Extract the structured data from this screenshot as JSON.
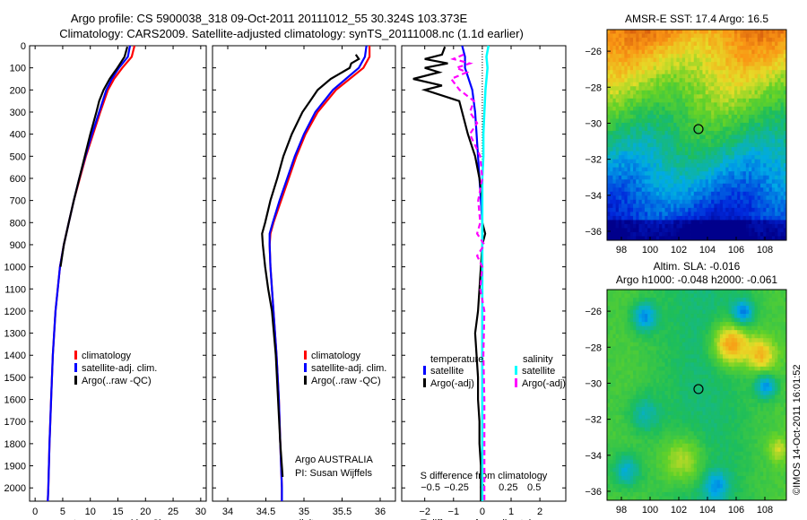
{
  "header": {
    "line1": "Argo profile: CS 5900038_318 09-Oct-2011 20111012_55 30.324S 103.373E",
    "line2": "Climatology: CARS2009. Satellite-adjusted climatology: synTS_20111008.nc (1.1d earlier)"
  },
  "colors": {
    "climatology": "#ff0000",
    "satellite": "#0000ff",
    "argo": "#000000",
    "sal_satellite": "#00ffff",
    "sal_argo": "#ff00ff"
  },
  "chart_data": [
    {
      "type": "line",
      "id": "temperature",
      "xlabel": "temperature (deg C)",
      "xlim": [
        -1,
        31
      ],
      "xticks": [
        0,
        5,
        10,
        15,
        20,
        25,
        30
      ],
      "ylim": [
        2060,
        0
      ],
      "yticks": [
        0,
        100,
        200,
        300,
        400,
        500,
        600,
        700,
        800,
        900,
        1000,
        1100,
        1200,
        1300,
        1400,
        1500,
        1600,
        1700,
        1800,
        1900,
        2000
      ],
      "legend": [
        "climatology",
        "satellite-adj. clim.",
        "Argo(..raw -QC)"
      ],
      "series": [
        {
          "name": "climatology",
          "depth": [
            0,
            50,
            100,
            150,
            200,
            300,
            400,
            500,
            600,
            700,
            800,
            900,
            1000,
            1200,
            1400,
            1600,
            1800,
            2000,
            2060
          ],
          "values": [
            18.0,
            17.5,
            15.8,
            14.3,
            13.2,
            11.8,
            10.5,
            9.2,
            8.1,
            7.0,
            6.1,
            5.2,
            4.5,
            3.7,
            3.2,
            2.9,
            2.6,
            2.4,
            2.3
          ]
        },
        {
          "name": "satellite-adj. clim.",
          "depth": [
            0,
            50,
            100,
            150,
            200,
            300,
            400,
            500,
            600,
            700,
            800,
            900,
            1000,
            1200,
            1400,
            1600,
            1800,
            2000,
            2060
          ],
          "values": [
            17.2,
            16.8,
            15.2,
            13.9,
            12.9,
            11.6,
            10.3,
            9.1,
            8.0,
            7.0,
            6.1,
            5.2,
            4.5,
            3.7,
            3.2,
            2.9,
            2.6,
            2.4,
            2.3
          ]
        },
        {
          "name": "Argo(..raw -QC)",
          "depth": [
            5,
            50,
            100,
            150,
            200,
            250,
            300,
            400,
            500,
            600,
            700,
            800,
            900,
            1000
          ],
          "values": [
            16.7,
            16.2,
            14.9,
            13.5,
            12.4,
            11.6,
            11.1,
            10.0,
            9.0,
            8.0,
            7.0,
            6.1,
            5.2,
            4.6
          ]
        }
      ]
    },
    {
      "type": "line",
      "id": "salinity",
      "xlabel": "salinity",
      "xlim": [
        33.8,
        36.2
      ],
      "xticks": [
        34,
        34.5,
        35,
        35.5,
        36
      ],
      "ylim": [
        2060,
        0
      ],
      "legend": [
        "climatology",
        "satellite-adj. clim.",
        "Argo(..raw -QC)"
      ],
      "annotation": [
        "Argo AUSTRALIA",
        "PI: Susan Wijffels"
      ],
      "series": [
        {
          "name": "climatology",
          "depth": [
            0,
            50,
            100,
            150,
            200,
            300,
            400,
            500,
            600,
            700,
            800,
            850,
            900,
            1000,
            1200,
            1400,
            1600,
            1800,
            2000,
            2060
          ],
          "values": [
            35.86,
            35.86,
            35.78,
            35.6,
            35.42,
            35.18,
            35.02,
            34.9,
            34.8,
            34.7,
            34.6,
            34.56,
            34.55,
            34.56,
            34.6,
            34.64,
            34.67,
            34.69,
            34.71,
            34.71
          ]
        },
        {
          "name": "satellite-adj. clim.",
          "depth": [
            0,
            50,
            100,
            150,
            200,
            300,
            400,
            500,
            600,
            700,
            800,
            850,
            900,
            1000,
            1200,
            1400,
            1600,
            1800,
            2000,
            2060
          ],
          "values": [
            35.82,
            35.8,
            35.72,
            35.55,
            35.38,
            35.15,
            35.0,
            34.88,
            34.78,
            34.68,
            34.59,
            34.55,
            34.55,
            34.56,
            34.6,
            34.64,
            34.67,
            34.69,
            34.71,
            34.71
          ]
        },
        {
          "name": "Argo(..raw -QC)",
          "depth": [
            40,
            60,
            80,
            100,
            150,
            200,
            250,
            300,
            400,
            500,
            600,
            700,
            800,
            850,
            900,
            1000,
            1100,
            1200,
            1400,
            1600,
            1800,
            1950
          ],
          "values": [
            35.68,
            35.72,
            35.62,
            35.6,
            35.35,
            35.18,
            35.08,
            34.98,
            34.84,
            34.73,
            34.65,
            34.56,
            34.49,
            34.45,
            34.46,
            34.49,
            34.53,
            34.58,
            34.63,
            34.66,
            34.69,
            34.72
          ]
        }
      ]
    },
    {
      "type": "line",
      "id": "differences",
      "xlabel": "T difference from climatology",
      "top_label": "S difference from climatology",
      "xlim": [
        -2.8,
        2.9
      ],
      "xticks": [
        -2,
        -1,
        0,
        1,
        2
      ],
      "s_xticks": [
        -0.5,
        -0.25,
        0,
        0.25,
        0.5
      ],
      "ylim": [
        2060,
        0
      ],
      "legend_headers": [
        "temperature",
        "salinity"
      ],
      "legend": [
        "satellite",
        "Argo(-adj)",
        "satellite",
        "Argo(-adj)"
      ],
      "series": [
        {
          "name": "T satellite",
          "depth": [
            0,
            50,
            100,
            200,
            300,
            400,
            500,
            600,
            700,
            800,
            900,
            1000,
            2000,
            2060
          ],
          "values": [
            -0.7,
            -0.6,
            -0.6,
            -0.35,
            -0.25,
            -0.2,
            -0.15,
            -0.1,
            -0.05,
            0.0,
            0.0,
            0.0,
            0.0,
            0.0
          ]
        },
        {
          "name": "T Argo(-adj)",
          "depth": [
            5,
            40,
            60,
            80,
            100,
            120,
            150,
            180,
            200,
            250,
            300,
            400,
            500,
            600,
            700,
            800,
            850,
            900,
            1000,
            1100,
            1200,
            1300,
            1400,
            1500,
            1600,
            1700,
            1800,
            1900,
            2000,
            2060
          ],
          "values": [
            -1.3,
            -1.4,
            -2.0,
            -1.2,
            -2.0,
            -1.5,
            -2.4,
            -1.4,
            -2.0,
            -0.8,
            -0.7,
            -0.5,
            -0.25,
            -0.1,
            0.0,
            0.0,
            0.1,
            0.0,
            -0.05,
            -0.1,
            -0.15,
            -0.25,
            -0.2,
            -0.15,
            -0.15,
            -0.1,
            -0.1,
            -0.05,
            -0.05,
            -0.05
          ]
        },
        {
          "name": "S satellite",
          "depth": [
            0,
            50,
            100,
            200,
            300,
            400,
            500,
            600,
            700,
            800,
            900,
            1000,
            2000,
            2060
          ],
          "values": [
            0.06,
            0.04,
            0.05,
            0.03,
            0.02,
            0.01,
            0.01,
            0.0,
            0.0,
            0.0,
            0.0,
            0.0,
            0.0,
            0.0
          ]
        },
        {
          "name": "S Argo(-adj)",
          "depth": [
            40,
            60,
            80,
            100,
            120,
            150,
            200,
            250,
            300,
            350,
            400,
            500,
            600,
            700,
            800,
            850,
            900,
            950,
            1000,
            1100,
            1200,
            1400,
            1600,
            1800,
            2000,
            2060
          ],
          "values": [
            -0.18,
            -0.28,
            -0.12,
            -0.25,
            -0.15,
            -0.3,
            -0.22,
            -0.08,
            -0.12,
            -0.05,
            -0.12,
            -0.02,
            0.0,
            -0.04,
            -0.02,
            -0.05,
            0.02,
            -0.05,
            0.0,
            -0.02,
            0.02,
            0.01,
            0.02,
            0.02,
            0.02,
            0.02
          ]
        }
      ]
    },
    {
      "type": "heatmap",
      "id": "sst-map",
      "title": "AMSR-E SST: 17.4 Argo: 16.5",
      "xlim": [
        97,
        109.5
      ],
      "ylim": [
        -36.5,
        -24.8
      ],
      "xticks": [
        98,
        100,
        102,
        104,
        106,
        108
      ],
      "yticks": [
        -26,
        -28,
        -30,
        -32,
        -34,
        -36
      ],
      "marker": {
        "lon": 103.373,
        "lat": -30.324
      }
    },
    {
      "type": "heatmap",
      "id": "sla-map",
      "title": "Altim. SLA: -0.016",
      "subtitle": "Argo h1000: -0.048 h2000: -0.061",
      "xlim": [
        97,
        109.5
      ],
      "ylim": [
        -36.5,
        -24.8
      ],
      "xticks": [
        98,
        100,
        102,
        104,
        106,
        108
      ],
      "yticks": [
        -26,
        -28,
        -30,
        -32,
        -34,
        -36
      ],
      "marker": {
        "lon": 103.373,
        "lat": -30.324
      }
    }
  ],
  "footer": {
    "credit": "©IMOS 14-Oct-2011 16:01:52"
  }
}
